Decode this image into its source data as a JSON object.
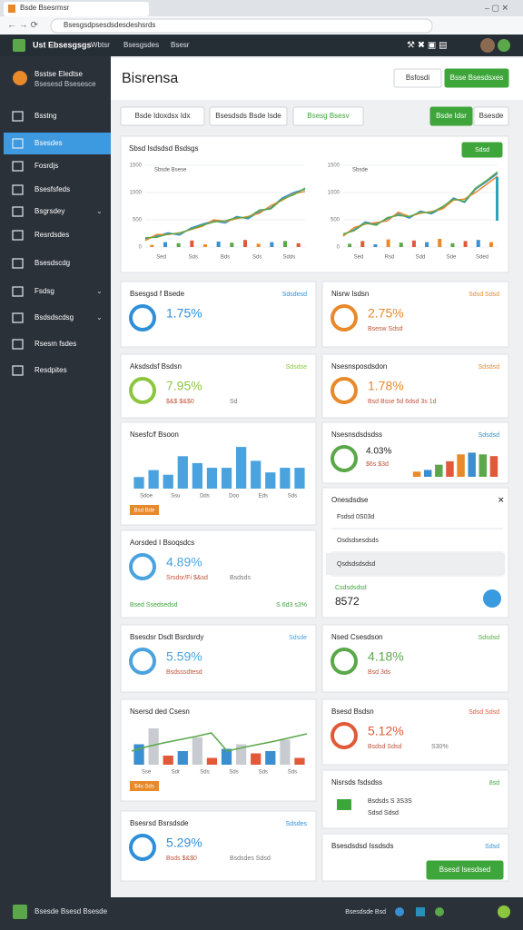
{
  "browser": {
    "tab": "Bsde Bsesrmsr",
    "url": "Bsesgsdpsesdsdesdeshsrds"
  },
  "topbar": {
    "brand": "Ust Ebsesgsgs",
    "menu": [
      "Wbtsr",
      "Bsesgsdes",
      "Bsesr"
    ]
  },
  "sidebar": {
    "org": [
      "Bsstse Eledtse",
      "Bsesesd Bsesesce"
    ],
    "items": [
      "Bsstng",
      "Bsesdes",
      "Fosrdjs",
      "Bsesfsfeds",
      "Bsgrsdey",
      "Resrdsdes",
      "Bsesdscdg",
      "Fsdsg",
      "Bsdsdscdsg",
      "Rsesm fsdes",
      "Resdpites"
    ],
    "active": 1
  },
  "header": {
    "title": "Bisrensa",
    "buttons": [
      "Bsfosdi",
      "Bsse Bsesdsxes"
    ]
  },
  "toolbar": {
    "filters": [
      "Bsde Idoxdsx Idx",
      "Bsesdsds Bsde Isde",
      "Bsesg Bsesv"
    ],
    "buttons": [
      "Bsde Idsr",
      "Bsesde"
    ]
  },
  "chart_panel": {
    "title": "Sbsd Isdsdsd Bsdsgs",
    "button": "Sdsd",
    "charts": [
      {
        "note": "Sbsde Bsese",
        "ylim": [
          0,
          1500
        ],
        "yticks": [
          0,
          500,
          1000,
          1500
        ],
        "xlabels": [
          "Sed",
          "Sds",
          "Bds",
          "Sds",
          "Sdds"
        ],
        "series": [
          {
            "color": "#3a8fd0",
            "values": [
              150,
              200,
              260,
              220,
              350,
              420,
              480,
              440,
              560,
              520,
              650,
              720,
              900,
              1000,
              1060
            ]
          },
          {
            "color": "#e8892a",
            "values": [
              120,
              230,
              230,
              260,
              320,
              380,
              500,
              470,
              520,
              560,
              620,
              760,
              860,
              980,
              1020
            ]
          },
          {
            "color": "#5aa84a",
            "values": [
              170,
              180,
              240,
              250,
              330,
              400,
              460,
              480,
              540,
              540,
              680,
              700,
              880,
              960,
              1080
            ]
          }
        ],
        "bars": {
          "colors": [
            "#e8892a",
            "#3a8fd0",
            "#5aa84a",
            "#e05a3a"
          ],
          "values": [
            40,
            90,
            70,
            120,
            50,
            100,
            80,
            130,
            60,
            90,
            110,
            70
          ]
        }
      },
      {
        "note": "Sbsde",
        "ylim": [
          0,
          1500
        ],
        "yticks": [
          0,
          500,
          1000,
          1500
        ],
        "xlabels": [
          "Sed",
          "Rsd",
          "Sdd",
          "Sde",
          "Sded"
        ],
        "series": [
          {
            "color": "#3a8fd0",
            "values": [
              220,
              320,
              460,
              420,
              520,
              610,
              530,
              660,
              610,
              720,
              900,
              820,
              1060,
              1200,
              1350
            ]
          },
          {
            "color": "#e8892a",
            "values": [
              200,
              360,
              420,
              450,
              480,
              640,
              560,
              620,
              650,
              700,
              860,
              880,
              1000,
              1150,
              1300
            ]
          },
          {
            "color": "#5aa84a",
            "values": [
              240,
              300,
              440,
              400,
              540,
              580,
              560,
              640,
              630,
              740,
              880,
              840,
              1080,
              1220,
              1380
            ]
          }
        ],
        "bars": {
          "colors": [
            "#5aa84a",
            "#e05a3a",
            "#3a8fd0",
            "#e8892a"
          ],
          "values": [
            60,
            110,
            50,
            140,
            80,
            120,
            90,
            150,
            70,
            110,
            130,
            90
          ]
        }
      }
    ]
  },
  "cards_left": [
    {
      "kind": "stat",
      "title": "Bsesgsd f Bsede",
      "link": "Sdsdesd",
      "value": "1.75%",
      "color": "#2f8fd8"
    },
    {
      "kind": "stat",
      "title": "Aksdsdsf Bsdsn",
      "link": "Sdsdse",
      "value": "7.95%",
      "sub": [
        "$&$ $&$0",
        "Sd"
      ],
      "color": "#8cc63f"
    },
    {
      "kind": "bars",
      "title": "Nsesfc/f Bsoon",
      "tag": "Bsd Bde",
      "ylim": [
        0,
        100
      ],
      "colors": [
        "#4aa3df"
      ],
      "values": [
        25,
        40,
        30,
        70,
        55,
        45,
        45,
        90,
        60,
        35,
        45,
        45
      ],
      "xlabels": [
        "Sdoe",
        "Ssu",
        "Dds",
        "Doo",
        "Eds",
        "Sds"
      ]
    },
    {
      "kind": "stat",
      "title": "Aorsded I Bsoqsdcs",
      "value": "4.89%",
      "sub": [
        "Srsdsr/Fi $&sd",
        "Bsdsds"
      ],
      "footer": [
        "Bsed Ssedsedsd",
        "S 6d3 s3%"
      ],
      "color": "#4aa3df"
    },
    {
      "kind": "stat",
      "title": "Bsesdsr Dsdt Bsrdsrdy",
      "link": "Sdsde",
      "value": "5.59%",
      "sub": [
        "Bsdsssdtesd"
      ],
      "color": "#4aa3df"
    },
    {
      "kind": "combo",
      "title": "Nsersd ded Csesn",
      "tag": "$4s Sds",
      "ylim": [
        0,
        100
      ],
      "colors": [
        "#3a8fd0",
        "#c8ccd0",
        "#e05a3a"
      ],
      "values": [
        45,
        80,
        20,
        30,
        60,
        15,
        35,
        45,
        25,
        30,
        55,
        15
      ],
      "line": {
        "color": "#5aa84a",
        "values": [
          30,
          40,
          48,
          55,
          62,
          70,
          30,
          38,
          45,
          52,
          60,
          68
        ]
      },
      "xlabels": [
        "Sse",
        "Sdr",
        "Sds",
        "Sds",
        "Sds",
        "Sds"
      ]
    },
    {
      "kind": "stat",
      "title": "Bsesrsd Bsrsdsde",
      "link": "Sdsdes",
      "value": "5.29%",
      "sub": [
        "Bsds $&$0",
        "Bsdsdes Sdsd"
      ],
      "color": "#2f8fd8"
    }
  ],
  "cards_right": [
    {
      "kind": "stat",
      "title": "Nisrw Isdsn",
      "link": "Sdsd Sdsd",
      "value": "2.75%",
      "sub": [
        "Bsesw Sdsd"
      ],
      "color": "#e8892a"
    },
    {
      "kind": "stat",
      "title": "Nsesnsposdsdon",
      "link": "Sdsdsd",
      "value": "1.78%",
      "sub": [
        "Bsd Bsse 5d 6dsd 3s 1d"
      ],
      "color": "#e8892a"
    },
    {
      "kind": "bars",
      "title": "Nsesnsdsdsdss",
      "link": "Sdsdsd",
      "value": "4.03%",
      "sub": [
        "$6s $3d"
      ],
      "ylim": [
        0,
        100
      ],
      "colors": [
        "#e8892a",
        "#3a8fd0",
        "#5aa84a",
        "#e05a3a"
      ],
      "values": [
        15,
        20,
        35,
        45,
        65,
        70,
        65,
        60
      ]
    },
    {
      "kind": "list",
      "title": "Onesdsdse",
      "items": [
        "Fsdsd 0S03d",
        "Osdsdsesdsds",
        "Qsdsdsdsdsd"
      ],
      "label": "Csdsdsdsd",
      "value": "8572"
    },
    {
      "kind": "stat",
      "title": "Nsed Csesdson",
      "link": "Sdsdsd",
      "value": "4.18%",
      "sub": [
        "Bsd 3ds"
      ],
      "color": "#5aa84a"
    },
    {
      "kind": "stat",
      "title": "Bsesd Bsdsn",
      "link": "Sdsd Sdsd",
      "value": "5.12%",
      "sub": [
        "Bsdsd Sdsd",
        "S30%"
      ],
      "color": "#e05a3a"
    },
    {
      "kind": "note",
      "title": "Nisrsds fsdsdss",
      "link": "8sd",
      "lines": [
        "Bsdsds S 3S3S",
        "Sdsd Sdsd"
      ],
      "color": "#3ea53a"
    },
    {
      "kind": "action",
      "title": "Bsesdsdsd Issdsds",
      "link": "Sdsd",
      "button": "Bsesd Isesdsed"
    }
  ],
  "footer": {
    "brand": "Bsesde Bsesd Bsesde",
    "right": "Bsesdsde Bsd"
  }
}
